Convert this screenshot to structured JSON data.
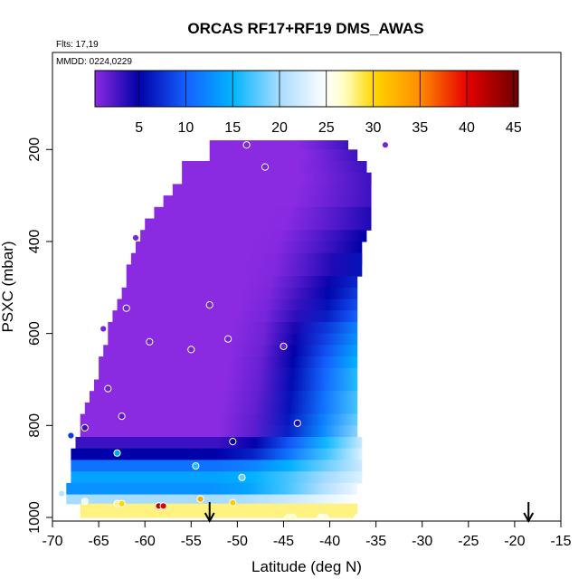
{
  "chart_data": {
    "type": "heatmap",
    "title": "ORCAS RF17+RF19 DMS_AWAS",
    "annotations": [
      "Flts: 17,19",
      "MMDD: 0224,0229"
    ],
    "xlabel": "Latitude (deg N)",
    "ylabel": "PSXC (mbar)",
    "xlim": [
      -70,
      -15
    ],
    "ylim": [
      1000,
      50
    ],
    "y_reversed": true,
    "x_ticks": [
      -70,
      -65,
      -60,
      -55,
      -50,
      -45,
      -40,
      -35,
      -30,
      -25,
      -20,
      -15
    ],
    "y_ticks": [
      200,
      400,
      600,
      800,
      1000
    ],
    "colorbar": {
      "range": [
        0.3,
        45.5
      ],
      "ticks": [
        5,
        10,
        15,
        20,
        25,
        30,
        35,
        40,
        45
      ],
      "stops": [
        {
          "v": 0.3,
          "color": "#8a2be2"
        },
        {
          "v": 5,
          "color": "#0000a8"
        },
        {
          "v": 10,
          "color": "#1560ff"
        },
        {
          "v": 15,
          "color": "#00b4ff"
        },
        {
          "v": 20,
          "color": "#a8dcff"
        },
        {
          "v": 25,
          "color": "#ffffff"
        },
        {
          "v": 27,
          "color": "#ffffc0"
        },
        {
          "v": 30,
          "color": "#ffd700"
        },
        {
          "v": 35,
          "color": "#ff8c00"
        },
        {
          "v": 40,
          "color": "#e60000"
        },
        {
          "v": 45.5,
          "color": "#6b0000"
        }
      ]
    },
    "field": [
      {
        "p": [
          180,
          200
        ],
        "lat": [
          -53,
          -38
        ],
        "edge": [
          0,
          3
        ]
      },
      {
        "p": [
          200,
          225
        ],
        "lat": [
          -53,
          -37
        ],
        "edge": [
          0,
          3
        ]
      },
      {
        "p": [
          225,
          250
        ],
        "lat": [
          -56,
          -36
        ],
        "edge": [
          0,
          3
        ]
      },
      {
        "p": [
          250,
          275
        ],
        "lat": [
          -56,
          -35.5
        ],
        "edge": [
          0,
          3
        ]
      },
      {
        "p": [
          275,
          300
        ],
        "lat": [
          -57,
          -35.5
        ],
        "edge": [
          0,
          3
        ]
      },
      {
        "p": [
          300,
          325
        ],
        "lat": [
          -58,
          -35.5
        ],
        "edge": [
          0,
          3
        ]
      },
      {
        "p": [
          325,
          350
        ],
        "lat": [
          -59,
          -35.5
        ],
        "edge": [
          0,
          4
        ]
      },
      {
        "p": [
          350,
          375
        ],
        "lat": [
          -60,
          -35.5
        ],
        "edge": [
          0,
          4
        ]
      },
      {
        "p": [
          375,
          400
        ],
        "lat": [
          -60.5,
          -36
        ],
        "edge": [
          0,
          5
        ]
      },
      {
        "p": [
          400,
          425
        ],
        "lat": [
          -61,
          -36.5
        ],
        "edge": [
          0,
          5
        ]
      },
      {
        "p": [
          425,
          450
        ],
        "lat": [
          -61.5,
          -36.5
        ],
        "edge": [
          0,
          6
        ]
      },
      {
        "p": [
          450,
          475
        ],
        "lat": [
          -62,
          -36.5
        ],
        "edge": [
          0,
          6
        ]
      },
      {
        "p": [
          475,
          500
        ],
        "lat": [
          -62,
          -37
        ],
        "edge": [
          0,
          7
        ]
      },
      {
        "p": [
          500,
          525
        ],
        "lat": [
          -62.5,
          -37
        ],
        "edge": [
          0,
          8
        ]
      },
      {
        "p": [
          525,
          550
        ],
        "lat": [
          -63,
          -37
        ],
        "edge": [
          0,
          9
        ]
      },
      {
        "p": [
          550,
          575
        ],
        "lat": [
          -63.5,
          -37
        ],
        "edge": [
          0,
          10
        ]
      },
      {
        "p": [
          575,
          600
        ],
        "lat": [
          -64,
          -37
        ],
        "edge": [
          0,
          12
        ]
      },
      {
        "p": [
          600,
          625
        ],
        "lat": [
          -64,
          -37
        ],
        "edge": [
          0,
          13
        ]
      },
      {
        "p": [
          625,
          650
        ],
        "lat": [
          -64.5,
          -37
        ],
        "edge": [
          0,
          14
        ]
      },
      {
        "p": [
          650,
          675
        ],
        "lat": [
          -65,
          -37
        ],
        "edge": [
          0,
          15
        ]
      },
      {
        "p": [
          675,
          700
        ],
        "lat": [
          -65,
          -37
        ],
        "edge": [
          0,
          16
        ]
      },
      {
        "p": [
          700,
          725
        ],
        "lat": [
          -65.5,
          -37
        ],
        "edge": [
          0,
          16
        ]
      },
      {
        "p": [
          725,
          750
        ],
        "lat": [
          -66,
          -37
        ],
        "edge": [
          0,
          17
        ]
      },
      {
        "p": [
          750,
          775
        ],
        "lat": [
          -66.5,
          -37
        ],
        "edge": [
          0,
          17
        ]
      },
      {
        "p": [
          775,
          800
        ],
        "lat": [
          -67,
          -37
        ],
        "edge": [
          0,
          18
        ]
      },
      {
        "p": [
          800,
          825
        ],
        "lat": [
          -67,
          -37
        ],
        "edge": [
          0,
          19
        ]
      },
      {
        "p": [
          825,
          850
        ],
        "lat": [
          -67.5,
          -36.5
        ],
        "edge": [
          3,
          22
        ]
      },
      {
        "p": [
          850,
          875
        ],
        "lat": [
          -68,
          -36.5
        ],
        "edge": [
          5,
          23
        ]
      },
      {
        "p": [
          875,
          900
        ],
        "lat": [
          -68,
          -36.5
        ],
        "edge": [
          11,
          22
        ]
      },
      {
        "p": [
          900,
          925
        ],
        "lat": [
          -68,
          -36.5
        ],
        "edge": [
          14,
          23
        ]
      },
      {
        "p": [
          925,
          950
        ],
        "lat": [
          -68.5,
          -37
        ],
        "edge": [
          13,
          24
        ]
      },
      {
        "p": [
          950,
          970
        ],
        "lat": [
          -68.5,
          -37
        ],
        "edge": [
          20,
          25
        ]
      },
      {
        "p": [
          970,
          1000
        ],
        "lat": [
          -67,
          -37
        ],
        "edge": [
          28,
          28
        ]
      }
    ],
    "samples": [
      {
        "lat": -49,
        "p": 190,
        "v": 0.8
      },
      {
        "lat": -34,
        "p": 190,
        "v": 1.0
      },
      {
        "lat": -47,
        "p": 238,
        "v": 0.8
      },
      {
        "lat": -61,
        "p": 392,
        "v": 0.9
      },
      {
        "lat": -62,
        "p": 545,
        "v": 1.0
      },
      {
        "lat": -53,
        "p": 538,
        "v": 1.0
      },
      {
        "lat": -64.5,
        "p": 590,
        "v": 1.0
      },
      {
        "lat": -59.5,
        "p": 618,
        "v": 1.0
      },
      {
        "lat": -51,
        "p": 612,
        "v": 1.2
      },
      {
        "lat": -55,
        "p": 635,
        "v": 1.2
      },
      {
        "lat": -45,
        "p": 628,
        "v": 1.5
      },
      {
        "lat": -64,
        "p": 720,
        "v": 1.5
      },
      {
        "lat": -62.5,
        "p": 780,
        "v": 2.0
      },
      {
        "lat": -43.5,
        "p": 795,
        "v": 4.0
      },
      {
        "lat": -66.5,
        "p": 805,
        "v": 3.0
      },
      {
        "lat": -68,
        "p": 822,
        "v": 8.0
      },
      {
        "lat": -50.5,
        "p": 835,
        "v": 5.0
      },
      {
        "lat": -63,
        "p": 860,
        "v": 14.0
      },
      {
        "lat": -54.5,
        "p": 888,
        "v": 16.0
      },
      {
        "lat": -49.5,
        "p": 913,
        "v": 18.0
      },
      {
        "lat": -69,
        "p": 948,
        "v": 21.0
      },
      {
        "lat": -66.5,
        "p": 965,
        "v": 24.0
      },
      {
        "lat": -63,
        "p": 970,
        "v": 28.0
      },
      {
        "lat": -62.5,
        "p": 970,
        "v": 30.0
      },
      {
        "lat": -58.5,
        "p": 975,
        "v": 42.0
      },
      {
        "lat": -58,
        "p": 975,
        "v": 40.0
      },
      {
        "lat": -54,
        "p": 960,
        "v": 33.0
      },
      {
        "lat": -50.5,
        "p": 968,
        "v": 31.0
      },
      {
        "lat": -44.5,
        "p": 1000,
        "v": 27.0
      },
      {
        "lat": -44,
        "p": 1000,
        "v": 27.0
      },
      {
        "lat": -41,
        "p": 1000,
        "v": 26.0
      },
      {
        "lat": -40.5,
        "p": 1000,
        "v": 26.0
      },
      {
        "lat": -37,
        "p": 1000,
        "v": 25.0
      }
    ],
    "arrows": [
      {
        "lat": -53,
        "label": ""
      },
      {
        "lat": -18.5,
        "label": ""
      }
    ]
  }
}
